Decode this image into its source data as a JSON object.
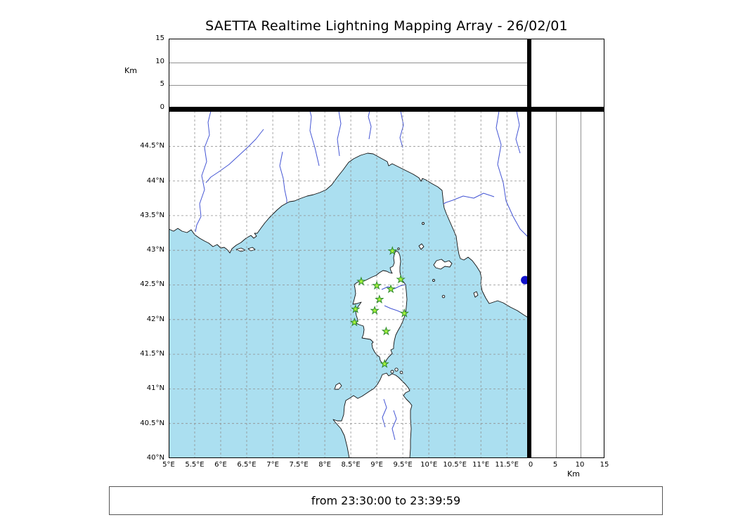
{
  "title": "SAETTA Realtime Lightning Mapping Array - 26/02/01",
  "status_bar": {
    "text": "from 23:30:00 to 23:39:59"
  },
  "axes": {
    "altitude": {
      "unit": "Km",
      "ticks": [
        0,
        5,
        10,
        15
      ],
      "max": 15,
      "gridlines_km": [
        5,
        10
      ]
    },
    "longitude": {
      "range": [
        5,
        11.93
      ],
      "ticks": [
        {
          "value": 5,
          "label": "5°E"
        },
        {
          "value": 5.5,
          "label": "5.5°E"
        },
        {
          "value": 6,
          "label": "6°E"
        },
        {
          "value": 6.5,
          "label": "6.5°E"
        },
        {
          "value": 7,
          "label": "7°E"
        },
        {
          "value": 7.5,
          "label": "7.5°E"
        },
        {
          "value": 8,
          "label": "8°E"
        },
        {
          "value": 8.5,
          "label": "8.5°E"
        },
        {
          "value": 9,
          "label": "9°E"
        },
        {
          "value": 9.5,
          "label": "9.5°E"
        },
        {
          "value": 10,
          "label": "10°E"
        },
        {
          "value": 10.5,
          "label": "10.5°E"
        },
        {
          "value": 11,
          "label": "11°E"
        },
        {
          "value": 11.5,
          "label": "11.5°E"
        }
      ]
    },
    "latitude": {
      "range": [
        40,
        45.01
      ],
      "ticks": [
        {
          "value": 44.5,
          "label": "44.5°N"
        },
        {
          "value": 44,
          "label": "44°N"
        },
        {
          "value": 43.5,
          "label": "43.5°N"
        },
        {
          "value": 43,
          "label": "43°N"
        },
        {
          "value": 42.5,
          "label": "42.5°N"
        },
        {
          "value": 42,
          "label": "42°N"
        },
        {
          "value": 41.5,
          "label": "41.5°N"
        },
        {
          "value": 41,
          "label": "41°N"
        },
        {
          "value": 40.5,
          "label": "40.5°N"
        },
        {
          "value": 40,
          "label": "40°N"
        }
      ]
    }
  },
  "colors": {
    "sea": "#abdff0",
    "land": "#ffffff",
    "coastline": "#111111",
    "river": "#4455d4",
    "grid": "#909090",
    "station_fill": "#a4f23c",
    "station_stroke": "#2d8a2d",
    "offshore_marker": "#1111cc"
  },
  "chart_data": [
    {
      "type": "scatter",
      "panel": "plan_view_map",
      "title": "SAETTA Realtime Lightning Mapping Array - 26/02/01",
      "xlabel": "",
      "ylabel": "",
      "xlim": [
        5,
        11.93
      ],
      "ylim": [
        40,
        45.01
      ],
      "grid": true,
      "x_tick_labels": [
        "5°E",
        "5.5°E",
        "6°E",
        "6.5°E",
        "7°E",
        "7.5°E",
        "8°E",
        "8.5°E",
        "9°E",
        "9.5°E",
        "10°E",
        "10.5°E",
        "11°E",
        "11.5°E"
      ],
      "y_tick_labels": [
        "40°N",
        "40.5°N",
        "41°N",
        "41.5°N",
        "42°N",
        "42.5°N",
        "43°N",
        "43.5°N",
        "44°N",
        "44.5°N"
      ],
      "series": [
        {
          "name": "lma_stations",
          "marker": "star",
          "points": [
            [
              9.3,
              42.99
            ],
            [
              8.7,
              42.55
            ],
            [
              9.0,
              42.49
            ],
            [
              9.27,
              42.44
            ],
            [
              9.46,
              42.58
            ],
            [
              9.05,
              42.29
            ],
            [
              8.59,
              42.15
            ],
            [
              8.96,
              42.13
            ],
            [
              9.53,
              42.09
            ],
            [
              8.57,
              41.96
            ],
            [
              9.18,
              41.83
            ],
            [
              9.15,
              41.36
            ]
          ]
        },
        {
          "name": "offshore_marker",
          "marker": "circle",
          "points": [
            [
              11.85,
              42.57
            ]
          ]
        }
      ],
      "lightning_sources": []
    },
    {
      "type": "scatter",
      "panel": "altitude_vs_longitude",
      "ylabel": "Km",
      "ylim": [
        0,
        15
      ],
      "y_ticks": [
        0,
        5,
        10,
        15
      ],
      "points": []
    },
    {
      "type": "scatter",
      "panel": "altitude_vs_latitude",
      "xlabel": "Km",
      "xlim": [
        0,
        15
      ],
      "x_ticks": [
        0,
        5,
        10,
        15
      ],
      "points": []
    }
  ]
}
